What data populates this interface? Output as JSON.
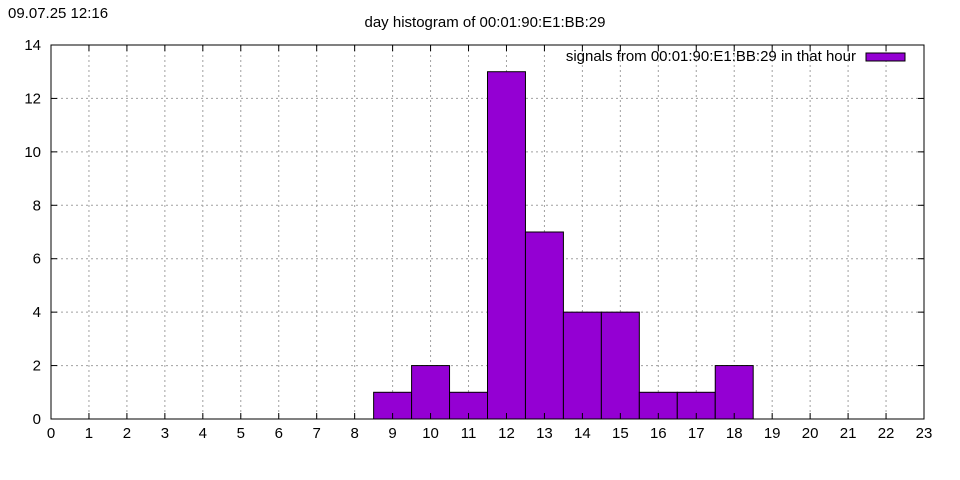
{
  "timestamp": "09.07.25 12:16",
  "chart_data": {
    "type": "bar",
    "title": "day histogram of 00:01:90:E1:BB:29",
    "xlabel": "",
    "ylabel": "",
    "xlim": [
      0,
      23
    ],
    "ylim": [
      0,
      14
    ],
    "x_ticks": [
      "0",
      "1",
      "2",
      "3",
      "4",
      "5",
      "6",
      "7",
      "8",
      "9",
      "10",
      "11",
      "12",
      "13",
      "14",
      "15",
      "16",
      "17",
      "18",
      "19",
      "20",
      "21",
      "22",
      "23"
    ],
    "y_ticks": [
      "0",
      "2",
      "4",
      "6",
      "8",
      "10",
      "12",
      "14"
    ],
    "grid": true,
    "legend_position": "top-right",
    "series": [
      {
        "name": "signals from 00:01:90:E1:BB:29 in that hour",
        "color": "#9400d3",
        "bars": [
          {
            "hour": 9,
            "value": 1
          },
          {
            "hour": 10,
            "value": 2
          },
          {
            "hour": 11,
            "value": 1
          },
          {
            "hour": 12,
            "value": 13
          },
          {
            "hour": 13,
            "value": 7
          },
          {
            "hour": 14,
            "value": 4
          },
          {
            "hour": 15,
            "value": 4
          },
          {
            "hour": 16,
            "value": 1
          },
          {
            "hour": 17,
            "value": 1
          },
          {
            "hour": 18,
            "value": 2
          }
        ]
      }
    ]
  }
}
